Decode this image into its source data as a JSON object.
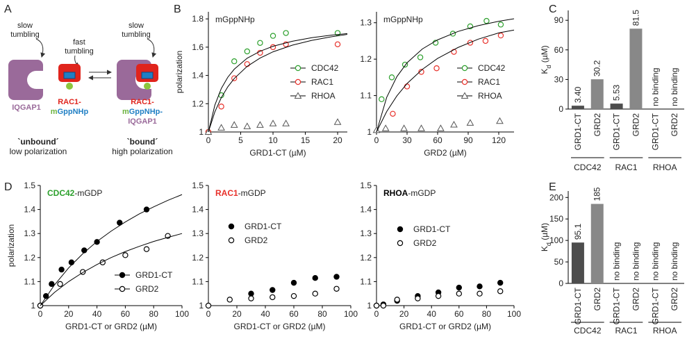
{
  "panels": [
    "A",
    "B",
    "C",
    "D",
    "E"
  ],
  "diagram": {
    "texts": [
      "slow",
      "tumbling",
      "fast",
      "tumbling",
      "slow",
      "tumbling",
      "IQGAP1",
      "RAC1-",
      "m",
      "GppNHp",
      "RAC1-",
      "m",
      "GppNHp-",
      "IQGAP1",
      "`unbound´",
      "low polarization",
      "`bound´",
      "high polarization"
    ]
  },
  "chart_data": [
    {
      "type": "scatter",
      "title": "mGppNHp",
      "xlabel": "GRD1-CT (µM)",
      "ylabel": "polarization",
      "xlim": [
        0,
        21.5
      ],
      "ylim": [
        1,
        1.85
      ],
      "xticks": [
        0,
        5,
        10,
        15,
        20
      ],
      "yticks": [
        1,
        1.2,
        1.4,
        1.6,
        1.8
      ],
      "legend_lines": true,
      "series": [
        {
          "name": "CDC42",
          "color": "#2ca02c",
          "marker": "circle-open",
          "x": [
            0,
            2,
            4,
            6,
            8,
            10,
            12,
            20
          ],
          "values": [
            1.0,
            1.26,
            1.5,
            1.57,
            1.63,
            1.68,
            1.7,
            1.7
          ]
        },
        {
          "name": "RAC1",
          "color": "#e8302a",
          "marker": "circle-open",
          "x": [
            0,
            2,
            4,
            6,
            8,
            10,
            12,
            20
          ],
          "values": [
            1.0,
            1.18,
            1.38,
            1.48,
            1.56,
            1.6,
            1.62,
            1.62
          ]
        },
        {
          "name": "RHOA",
          "color": "#555555",
          "marker": "triangle-open",
          "x": [
            0,
            2,
            4,
            6,
            8,
            10,
            12,
            20
          ],
          "values": [
            1.0,
            1.03,
            1.05,
            1.04,
            1.05,
            1.06,
            1.06,
            1.07
          ]
        },
        {
          "color": "#000000",
          "line": true,
          "x": [
            0,
            1,
            2,
            3,
            4,
            6,
            8,
            10,
            13,
            16,
            19,
            21.5
          ],
          "values": [
            1,
            1.19,
            1.308,
            1.387,
            1.444,
            1.522,
            1.571,
            1.606,
            1.642,
            1.667,
            1.685,
            1.696
          ]
        },
        {
          "color": "#000000",
          "line": true,
          "x": [
            0,
            1,
            2,
            3,
            4,
            6,
            8,
            10,
            13,
            16,
            19,
            21.5
          ],
          "values": [
            1,
            1.142,
            1.243,
            1.319,
            1.378,
            1.464,
            1.523,
            1.567,
            1.614,
            1.648,
            1.673,
            1.69
          ]
        }
      ]
    },
    {
      "type": "scatter",
      "title": "mGppNHp",
      "xlabel": "GRD2 (µM)",
      "xlim": [
        0,
        135
      ],
      "ylim": [
        1,
        1.33
      ],
      "xticks": [
        0,
        30,
        60,
        90,
        120
      ],
      "yticks": [
        1,
        1.1,
        1.2,
        1.3
      ],
      "legend_lines": true,
      "series": [
        {
          "name": "CDC42",
          "color": "#2ca02c",
          "marker": "circle-open",
          "x": [
            5,
            15,
            28,
            43,
            58,
            75,
            92,
            108,
            122
          ],
          "values": [
            1.09,
            1.15,
            1.185,
            1.205,
            1.245,
            1.27,
            1.29,
            1.305,
            1.295
          ]
        },
        {
          "name": "RAC1",
          "color": "#e8302a",
          "marker": "circle-open",
          "x": [
            16,
            30,
            44,
            59,
            76,
            92,
            107,
            122
          ],
          "values": [
            1.05,
            1.125,
            1.165,
            1.175,
            1.22,
            1.245,
            1.25,
            1.265
          ]
        },
        {
          "name": "RHOA",
          "color": "#555555",
          "marker": "triangle-open",
          "x": [
            0,
            9,
            27,
            44,
            63,
            76,
            92,
            121
          ],
          "values": [
            1.005,
            1.01,
            1.01,
            1.01,
            1.01,
            1.02,
            1.025,
            1.03
          ]
        },
        {
          "color": "#000000",
          "line": true,
          "x": [
            0,
            10,
            20,
            30,
            45,
            60,
            80,
            100,
            120,
            135
          ],
          "values": [
            1,
            1.095,
            1.152,
            1.19,
            1.228,
            1.253,
            1.276,
            1.292,
            1.304,
            1.311
          ]
        },
        {
          "color": "#000000",
          "line": true,
          "x": [
            0,
            10,
            20,
            30,
            45,
            60,
            80,
            100,
            120,
            135
          ],
          "values": [
            1,
            1.056,
            1.099,
            1.133,
            1.172,
            1.202,
            1.232,
            1.255,
            1.272,
            1.28
          ]
        }
      ]
    },
    {
      "type": "bar",
      "ylabel": [
        "K",
        "d",
        " (µM)"
      ],
      "ylim": [
        0,
        100
      ],
      "yticks": [
        0,
        30,
        60,
        90
      ],
      "categories": [
        "GRD1-CT",
        "GRD2",
        "GRD1-CT",
        "GRD2",
        "GRD1-CT",
        "GRD2"
      ],
      "groups": [
        "CDC42",
        "RAC1",
        "RHOA"
      ],
      "group_colors": [
        "#2ca02c",
        "#e8302a",
        "#000000"
      ],
      "colors": [
        "#4d4d4d",
        "#888888",
        "#4d4d4d",
        "#888888",
        "#4d4d4d",
        "#888888"
      ],
      "values": [
        3.4,
        30.2,
        5.53,
        81.5,
        null,
        null
      ],
      "value_labels": [
        "3.40",
        "30.2",
        "5.53",
        "81.5",
        "no binding",
        "no binding"
      ]
    },
    {
      "type": "scatter",
      "title": [
        "CDC42",
        "-mGDP"
      ],
      "title_color": "#2ca02c",
      "xlabel": "GRD1-CT or GRD2 (µM)",
      "ylabel": "polarization",
      "xlim": [
        0,
        100
      ],
      "ylim": [
        1,
        1.5
      ],
      "xticks": [
        0,
        20,
        40,
        60,
        80,
        100
      ],
      "yticks": [
        1,
        1.1,
        1.2,
        1.3,
        1.4,
        1.5
      ],
      "legend_lines": true,
      "series": [
        {
          "name": "GRD1-CT",
          "color": "#000000",
          "marker": "circle-filled",
          "x": [
            0,
            4,
            8,
            15,
            22,
            31,
            40,
            56,
            75
          ],
          "values": [
            1.0,
            1.04,
            1.09,
            1.15,
            1.18,
            1.23,
            1.265,
            1.345,
            1.4
          ]
        },
        {
          "name": "GRD2",
          "color": "#000000",
          "marker": "circle-open",
          "x": [
            0,
            14,
            30,
            44,
            60,
            75,
            90
          ],
          "values": [
            1.0,
            1.09,
            1.14,
            1.18,
            1.21,
            1.235,
            1.29
          ]
        },
        {
          "color": "#000000",
          "line": true,
          "x": [
            0,
            10,
            20,
            30,
            40,
            50,
            60,
            70,
            80,
            90,
            100
          ],
          "values": [
            1,
            1.086,
            1.157,
            1.216,
            1.267,
            1.31,
            1.348,
            1.382,
            1.411,
            1.438,
            1.462
          ]
        },
        {
          "color": "#000000",
          "line": true,
          "x": [
            0,
            10,
            20,
            30,
            40,
            50,
            60,
            70,
            80,
            90,
            100
          ],
          "values": [
            1,
            1.055,
            1.1,
            1.138,
            1.171,
            1.2,
            1.225,
            1.247,
            1.267,
            1.284,
            1.3
          ]
        }
      ]
    },
    {
      "type": "scatter",
      "title": [
        "RAC1",
        "-mGDP"
      ],
      "title_color": "#e8302a",
      "xlabel": "GRD1-CT or GRD2 (µM)",
      "xlim": [
        0,
        100
      ],
      "ylim": [
        1,
        1.5
      ],
      "xticks": [
        0,
        20,
        40,
        60,
        80,
        100
      ],
      "yticks": [
        1,
        1.1,
        1.2,
        1.3,
        1.4,
        1.5
      ],
      "legend_lines": false,
      "series": [
        {
          "name": "GRD1-CT",
          "color": "#000000",
          "marker": "circle-filled",
          "x": [
            30,
            45,
            60,
            75,
            90
          ],
          "values": [
            1.05,
            1.065,
            1.095,
            1.115,
            1.12
          ]
        },
        {
          "name": "GRD2",
          "color": "#000000",
          "marker": "circle-open",
          "x": [
            0,
            15,
            30,
            45,
            60,
            75,
            90
          ],
          "values": [
            1.0,
            1.025,
            1.03,
            1.035,
            1.04,
            1.05,
            1.07
          ]
        }
      ]
    },
    {
      "type": "scatter",
      "title": [
        "RHOA",
        "-mGDP"
      ],
      "title_color": "#000000",
      "xlabel": "GRD1-CT or GRD2 (µM)",
      "xlim": [
        0,
        100
      ],
      "ylim": [
        1,
        1.5
      ],
      "xticks": [
        0,
        20,
        40,
        60,
        80,
        100
      ],
      "yticks": [
        1,
        1.1,
        1.2,
        1.3,
        1.4,
        1.5
      ],
      "legend_lines": false,
      "series": [
        {
          "name": "GRD1-CT",
          "color": "#000000",
          "marker": "circle-filled",
          "x": [
            0,
            5,
            15,
            30,
            45,
            60,
            75,
            90
          ],
          "values": [
            1.0,
            1.005,
            1.02,
            1.04,
            1.055,
            1.075,
            1.08,
            1.095
          ]
        },
        {
          "name": "GRD2",
          "color": "#000000",
          "marker": "circle-open",
          "x": [
            0,
            5,
            15,
            30,
            45,
            60,
            75,
            90
          ],
          "values": [
            1.0,
            1.0,
            1.025,
            1.03,
            1.04,
            1.05,
            1.05,
            1.06
          ]
        }
      ]
    },
    {
      "type": "bar",
      "ylabel": [
        "K",
        "d",
        " (µM)"
      ],
      "ylim": [
        0,
        215
      ],
      "yticks": [
        0,
        50,
        100,
        150,
        200
      ],
      "categories": [
        "GRD1-CT",
        "GRD2",
        "GRD1-CT",
        "GRD2",
        "GRD1-CT",
        "GRD2"
      ],
      "groups": [
        "CDC42",
        "RAC1",
        "RHOA"
      ],
      "group_colors": [
        "#2ca02c",
        "#e8302a",
        "#000000"
      ],
      "colors": [
        "#4d4d4d",
        "#888888",
        "#4d4d4d",
        "#888888",
        "#4d4d4d",
        "#888888"
      ],
      "values": [
        95.1,
        185,
        null,
        null,
        null,
        null
      ],
      "value_labels": [
        "95.1",
        "185",
        "no binding",
        "no binding",
        "no binding",
        "no binding"
      ]
    }
  ]
}
